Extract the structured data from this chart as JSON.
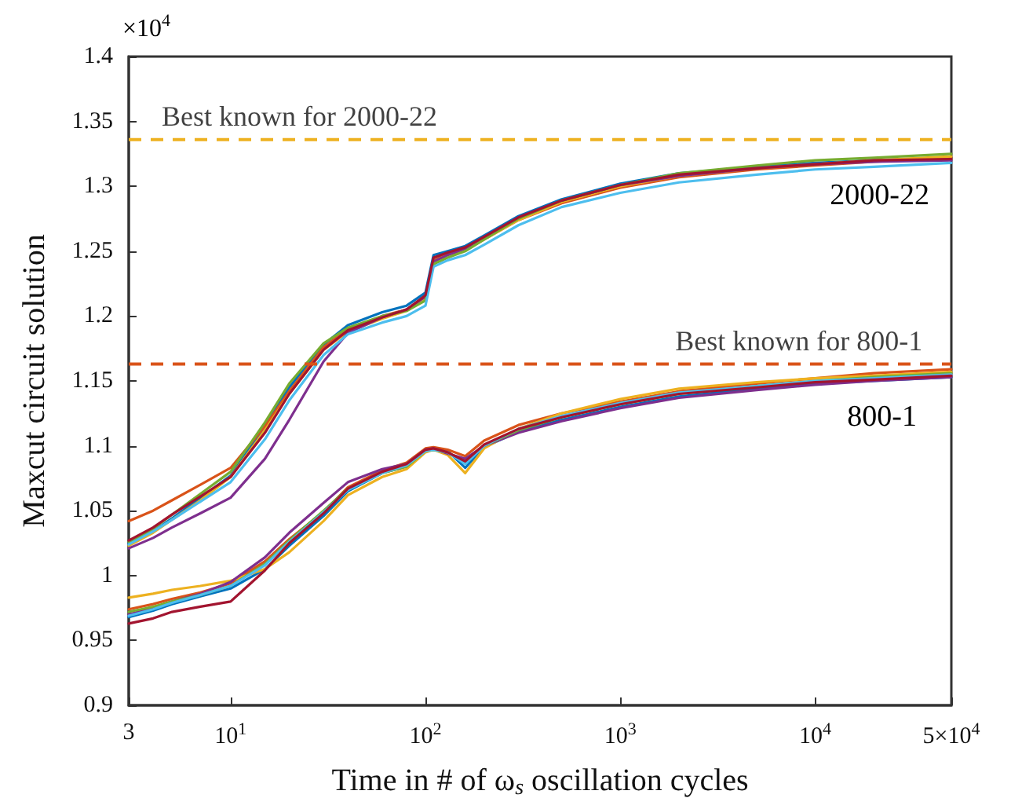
{
  "chart_data": {
    "type": "line",
    "xlabel": "Time in # of ω$_{s}$ oscillation cycles",
    "ylabel": "Maxcut circuit solution",
    "annotations": [
      "×10$^{4}$",
      "2000-22",
      "800-1"
    ],
    "log": "x",
    "grid": false,
    "marker": "none",
    "line_style": "solid",
    "xlim": [
      3,
      50000
    ],
    "xticks": [
      3,
      {
        "value": 10,
        "label": "10$^{1}$"
      },
      {
        "value": 100,
        "label": "10$^{2}$"
      },
      {
        "value": 1000,
        "label": "10$^{3}$"
      },
      {
        "value": 10000,
        "label": "10$^{4}$"
      },
      {
        "value": 50000,
        "label": "5×10$^{4}$"
      }
    ],
    "ylim": [
      0.9,
      1.4
    ],
    "yticks": [
      0.9,
      0.95,
      1,
      1.05,
      1.1,
      1.15,
      1.2,
      1.25,
      1.3,
      1.35,
      1.4
    ],
    "x": [
      3,
      4,
      5,
      7,
      10,
      15,
      20,
      30,
      40,
      60,
      80,
      100,
      110,
      130,
      160,
      200,
      300,
      500,
      1000,
      2000,
      5000,
      10000,
      20000,
      50000
    ],
    "ref_lines": [
      {
        "axis": "y",
        "value": 1.336,
        "label": "Best known for 2000-22",
        "color": "#edb120",
        "line_style": "dashed"
      },
      {
        "axis": "y",
        "value": 1.163,
        "label": "Best known for 800-1",
        "color": "#d95319",
        "line_style": "dashed"
      }
    ],
    "series": [
      {
        "color": "#0072bd",
        "values": [
          1.025,
          1.034,
          1.044,
          1.06,
          1.077,
          1.115,
          1.145,
          1.178,
          1.193,
          1.203,
          1.208,
          1.218,
          1.247,
          1.25,
          1.254,
          1.262,
          1.277,
          1.29,
          1.302,
          1.31,
          1.315,
          1.318,
          1.32,
          1.322
        ]
      },
      {
        "color": "#d95319",
        "values": [
          1.042,
          1.05,
          1.058,
          1.07,
          1.083,
          1.115,
          1.142,
          1.176,
          1.19,
          1.2,
          1.205,
          1.214,
          1.243,
          1.248,
          1.251,
          1.259,
          1.274,
          1.287,
          1.299,
          1.307,
          1.313,
          1.316,
          1.319,
          1.322
        ]
      },
      {
        "color": "#edb120",
        "values": [
          1.023,
          1.033,
          1.043,
          1.058,
          1.076,
          1.112,
          1.14,
          1.174,
          1.188,
          1.198,
          1.204,
          1.213,
          1.242,
          1.247,
          1.251,
          1.259,
          1.274,
          1.288,
          1.3,
          1.308,
          1.314,
          1.317,
          1.32,
          1.323
        ]
      },
      {
        "color": "#7e2f8e",
        "values": [
          1.021,
          1.029,
          1.037,
          1.048,
          1.06,
          1.09,
          1.12,
          1.165,
          1.187,
          1.199,
          1.205,
          1.215,
          1.242,
          1.247,
          1.252,
          1.261,
          1.276,
          1.289,
          1.301,
          1.308,
          1.314,
          1.317,
          1.319,
          1.32
        ]
      },
      {
        "color": "#77ac30",
        "values": [
          1.026,
          1.036,
          1.047,
          1.063,
          1.08,
          1.118,
          1.148,
          1.179,
          1.191,
          1.2,
          1.204,
          1.212,
          1.24,
          1.245,
          1.25,
          1.259,
          1.275,
          1.289,
          1.301,
          1.31,
          1.316,
          1.32,
          1.322,
          1.325
        ]
      },
      {
        "color": "#4dbeee",
        "values": [
          1.024,
          1.034,
          1.043,
          1.057,
          1.072,
          1.105,
          1.135,
          1.17,
          1.186,
          1.195,
          1.2,
          1.208,
          1.238,
          1.243,
          1.247,
          1.255,
          1.27,
          1.284,
          1.295,
          1.303,
          1.309,
          1.313,
          1.315,
          1.318
        ]
      },
      {
        "color": "#a2142f",
        "values": [
          1.027,
          1.037,
          1.047,
          1.061,
          1.076,
          1.11,
          1.14,
          1.174,
          1.189,
          1.199,
          1.205,
          1.216,
          1.245,
          1.249,
          1.253,
          1.261,
          1.276,
          1.289,
          1.301,
          1.309,
          1.314,
          1.317,
          1.32,
          1.321
        ]
      },
      {
        "color": "#0072bd",
        "values": [
          0.968,
          0.973,
          0.978,
          0.984,
          0.99,
          1.005,
          1.023,
          1.046,
          1.065,
          1.079,
          1.084,
          1.096,
          1.097,
          1.096,
          1.083,
          1.099,
          1.111,
          1.12,
          1.13,
          1.138,
          1.144,
          1.148,
          1.15,
          1.153
        ]
      },
      {
        "color": "#d95319",
        "values": [
          0.974,
          0.978,
          0.982,
          0.987,
          0.994,
          1.011,
          1.028,
          1.049,
          1.068,
          1.081,
          1.087,
          1.098,
          1.099,
          1.097,
          1.092,
          1.104,
          1.116,
          1.125,
          1.134,
          1.142,
          1.148,
          1.152,
          1.156,
          1.159
        ]
      },
      {
        "color": "#edb120",
        "values": [
          0.983,
          0.986,
          0.989,
          0.992,
          0.996,
          1.005,
          1.018,
          1.042,
          1.062,
          1.076,
          1.082,
          1.095,
          1.097,
          1.093,
          1.079,
          1.098,
          1.113,
          1.125,
          1.136,
          1.144,
          1.149,
          1.152,
          1.154,
          1.157
        ]
      },
      {
        "color": "#7e2f8e",
        "values": [
          0.97,
          0.975,
          0.98,
          0.986,
          0.995,
          1.014,
          1.033,
          1.056,
          1.072,
          1.082,
          1.086,
          1.097,
          1.098,
          1.094,
          1.09,
          1.1,
          1.11,
          1.119,
          1.129,
          1.137,
          1.143,
          1.147,
          1.15,
          1.153
        ]
      },
      {
        "color": "#77ac30",
        "values": [
          0.972,
          0.976,
          0.98,
          0.985,
          0.992,
          1.009,
          1.027,
          1.05,
          1.067,
          1.079,
          1.084,
          1.096,
          1.097,
          1.095,
          1.087,
          1.1,
          1.112,
          1.122,
          1.132,
          1.14,
          1.146,
          1.15,
          1.153,
          1.156
        ]
      },
      {
        "color": "#4dbeee",
        "values": [
          0.969,
          0.974,
          0.979,
          0.985,
          0.992,
          1.008,
          1.026,
          1.049,
          1.066,
          1.079,
          1.085,
          1.096,
          1.097,
          1.095,
          1.086,
          1.1,
          1.113,
          1.123,
          1.133,
          1.141,
          1.146,
          1.15,
          1.152,
          1.155
        ]
      },
      {
        "color": "#a2142f",
        "values": [
          0.963,
          0.967,
          0.972,
          0.976,
          0.98,
          1.004,
          1.025,
          1.048,
          1.067,
          1.08,
          1.086,
          1.097,
          1.098,
          1.095,
          1.088,
          1.101,
          1.113,
          1.122,
          1.132,
          1.14,
          1.145,
          1.149,
          1.151,
          1.154
        ]
      }
    ]
  }
}
